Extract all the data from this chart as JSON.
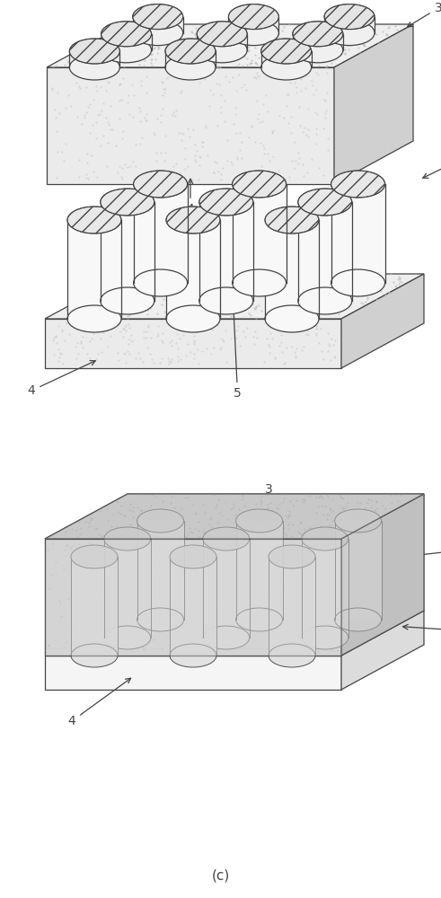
{
  "fig_width": 4.91,
  "fig_height": 10.0,
  "bg_color": "#ffffff",
  "lc": "#444444",
  "lw": 0.9,
  "font_size": 10,
  "caption_font_size": 11,
  "top_face": "#f2f2f2",
  "front_face": "#ebebeb",
  "right_face": "#d0d0d0",
  "cyl_body": "#f8f8f8",
  "cyl_top_hatch": "#e0e0e0",
  "overlay_top": "#cccccc",
  "overlay_front": "#c8c8c8",
  "overlay_right": "#b8b8b8",
  "sub_top": "#e4e4e4",
  "sub_front": "#f0f0f0",
  "sub_right": "#d8d8d8"
}
